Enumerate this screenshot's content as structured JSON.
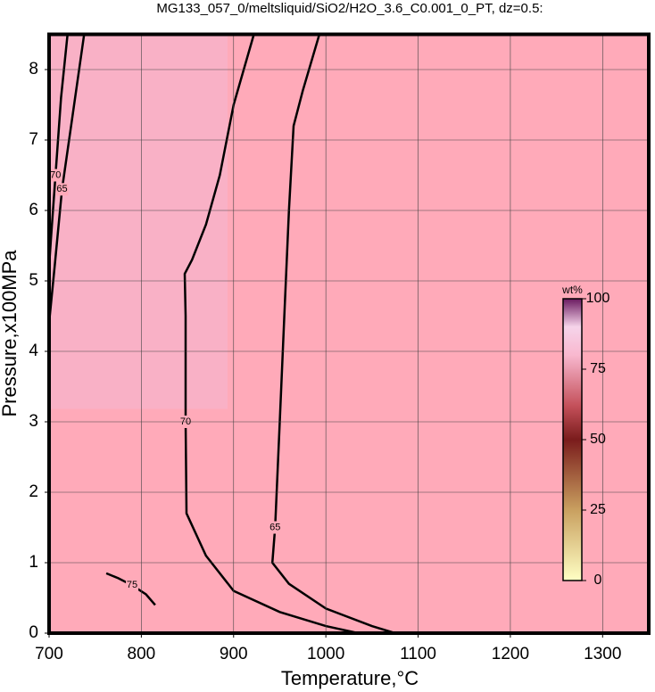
{
  "chart_data": {
    "type": "contour",
    "title": "MG133_057_0/meltsliquid/SiO2/H2O_3.6_C0.001_0_PT, dz=0.5:",
    "x_label": "Temperature,°C",
    "y_label": "Pressure,x100MPa",
    "xlim": [
      700,
      1350
    ],
    "ylim": [
      0,
      8.5
    ],
    "xticks": [
      700,
      800,
      900,
      1000,
      1100,
      1200,
      1300
    ],
    "yticks": [
      0,
      1,
      2,
      3,
      4,
      5,
      6,
      7,
      8
    ],
    "grid": true,
    "background": "#ffaab9",
    "line_color": "#000000",
    "contours": [
      {
        "level": 70,
        "x": [
          922,
          900,
          885,
          870,
          855,
          847,
          848,
          848,
          849,
          870,
          900,
          950,
          1000,
          1035
        ],
        "y": [
          8.5,
          7.5,
          6.5,
          5.8,
          5.3,
          5.1,
          4.5,
          3,
          1.7,
          1.1,
          0.6,
          0.3,
          0.1,
          0
        ]
      },
      {
        "level": 65,
        "x": [
          993,
          975,
          965,
          960,
          955,
          950,
          945,
          942,
          960,
          1000,
          1050,
          1075
        ],
        "y": [
          8.5,
          7.7,
          7.2,
          6,
          4.5,
          3,
          1.5,
          1.0,
          0.7,
          0.35,
          0.1,
          0
        ]
      },
      {
        "level": 65,
        "x": [
          738,
          725,
          714,
          706,
          700
        ],
        "y": [
          8.5,
          7.3,
          6.3,
          5.2,
          4.4
        ]
      },
      {
        "level": 70,
        "x": [
          720,
          713,
          707,
          702,
          700
        ],
        "y": [
          8.5,
          7.6,
          6.5,
          5.6,
          5.2
        ]
      },
      {
        "level": 75,
        "x": [
          762,
          775,
          790,
          805,
          815
        ],
        "y": [
          0.85,
          0.78,
          0.68,
          0.55,
          0.4
        ]
      }
    ],
    "colorbar": {
      "label": "wt%",
      "lim": [
        0,
        100
      ],
      "ticks": [
        0,
        25,
        50,
        75,
        100
      ]
    }
  }
}
